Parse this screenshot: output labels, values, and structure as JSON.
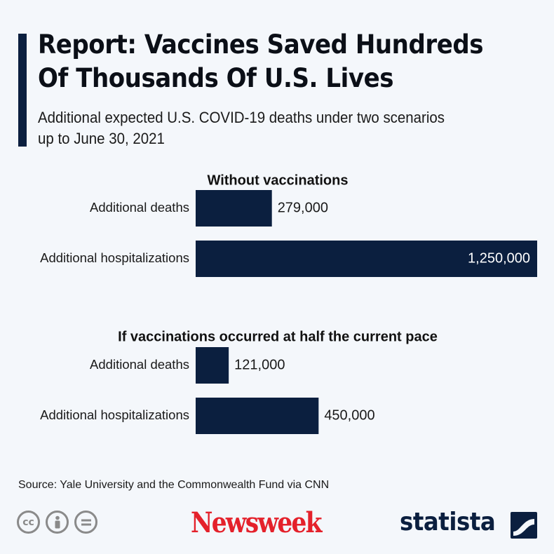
{
  "header": {
    "title_line1": "Report: Vaccines Saved Hundreds",
    "title_line2": "Of Thousands Of U.S. Lives",
    "subtitle_line1": "Additional expected U.S. COVID-19 deaths under two scenarios",
    "subtitle_line2": "up to June 30, 2021"
  },
  "chart_data": {
    "type": "bar",
    "orientation": "horizontal",
    "xlim": [
      0,
      1250000
    ],
    "groups": [
      {
        "title": "Without vaccinations",
        "categories": [
          "Additional deaths",
          "Additional hospitalizations"
        ],
        "values": [
          279000,
          1250000
        ],
        "value_labels": [
          "279,000",
          "1,250,000"
        ]
      },
      {
        "title": "If vaccinations occurred at half the current pace",
        "categories": [
          "Additional deaths",
          "Additional hospitalizations"
        ],
        "values": [
          121000,
          450000
        ],
        "value_labels": [
          "121,000",
          "450,000"
        ]
      }
    ],
    "bar_color": "#0b1f3f",
    "grid": false,
    "legend": "none"
  },
  "footer": {
    "source": "Source: Yale University and the Commonwealth Fund via CNN",
    "newsweek_logo": "Newsweek",
    "statista_logo": "statista",
    "license_icons": [
      "cc-icon",
      "attribution-icon",
      "no-derivatives-icon"
    ]
  },
  "colors": {
    "accent": "#0b1f3f",
    "background": "#f4f7fb",
    "newsweek_red": "#e4212b",
    "icon_gray": "#8a8a8a"
  }
}
